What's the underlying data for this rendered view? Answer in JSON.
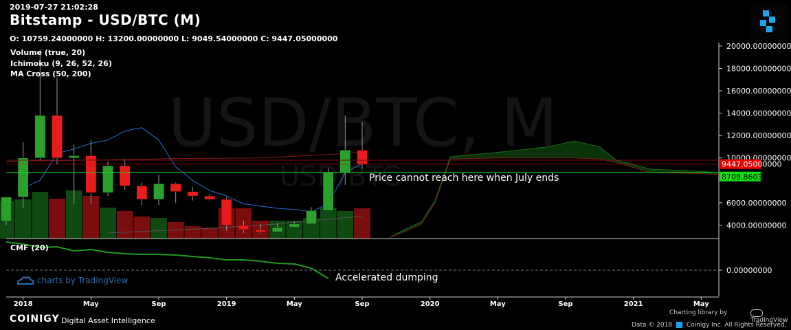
{
  "header": {
    "timestamp": "2019-07-27 21:02:28",
    "title": "Bitstamp - USD/BTC (M)",
    "ohlc": "O: 10759.24000000 H: 13200.00000000 L: 9049.54000000 C: 9447.05000000",
    "watermark_main": "USD/BTC, M",
    "watermark_sub": "USD/BTC"
  },
  "indicators": [
    "Volume (true, 20)",
    "Ichimoku (9, 26, 52, 26)",
    "MA Cross (50, 200)"
  ],
  "cmf_label": "CMF (20)",
  "annotations": {
    "price_note": "Price cannot reach here when July ends",
    "cmf_note": "Accelerated dumping"
  },
  "footer": {
    "brand": "COINIGY",
    "tagline": "Digital Asset Intelligence",
    "charting": "Charting library by",
    "tv": "TradingView",
    "copyright": "Data © 2018",
    "copyright_rest": "Coinigy Inc. All Rights Reserved.",
    "tv_watermark": "charts by TradingView"
  },
  "colors": {
    "up": "#2ca02c",
    "down": "#e81c1c",
    "vol_up": "#0f4a12",
    "vol_down": "#7a0d0d",
    "ma_blue": "#2a6fd6",
    "cmf_line": "#1f9a1f",
    "current_price": "#e50000",
    "level_line": "#10e010",
    "cloud": "#0a3a0a"
  },
  "chart_data": {
    "type": "candlestick",
    "price_axis": {
      "ticks": [
        "20000.00000000",
        "18000.00000000",
        "16000.00000000",
        "14000.00000000",
        "12000.00000000",
        "10000.00000000",
        "6000.00000000",
        "4000.00000000"
      ],
      "tick_values": [
        20000,
        18000,
        16000,
        14000,
        12000,
        10000,
        6000,
        4000
      ],
      "range": [
        2900,
        20300
      ]
    },
    "time_axis": {
      "labels": [
        "2018",
        "May",
        "Sep",
        "2019",
        "May",
        "Sep",
        "2020",
        "May",
        "Sep",
        "2021",
        "May"
      ],
      "label_months": [
        13,
        17,
        21,
        25,
        29,
        33,
        37,
        41,
        45,
        49,
        53
      ],
      "range_months": [
        12.0,
        54.0
      ]
    },
    "current_price": {
      "value": 9447.05,
      "label": "9447.05000000"
    },
    "level_line": {
      "value": 8709.86032066,
      "label": "8709.86032066"
    },
    "red_dotted_level": 9800,
    "candles": [
      {
        "m": 12,
        "o": 4360,
        "h": 6500,
        "l": 4000,
        "c": 6500
      },
      {
        "m": 13,
        "o": 6500,
        "h": 11400,
        "l": 5500,
        "c": 10000
      },
      {
        "m": 14,
        "o": 10000,
        "h": 19700,
        "l": 9800,
        "c": 13800
      },
      {
        "m": 15,
        "o": 13800,
        "h": 17200,
        "l": 9400,
        "c": 10000
      },
      {
        "m": 16,
        "o": 10000,
        "h": 11200,
        "l": 5900,
        "c": 10200
      },
      {
        "m": 17,
        "o": 10200,
        "h": 11600,
        "l": 5900,
        "c": 6900
      },
      {
        "m": 18,
        "o": 6900,
        "h": 9700,
        "l": 6600,
        "c": 9300
      },
      {
        "m": 19,
        "o": 9300,
        "h": 9900,
        "l": 7100,
        "c": 7500
      },
      {
        "m": 20,
        "o": 7500,
        "h": 7800,
        "l": 5800,
        "c": 6300
      },
      {
        "m": 21,
        "o": 6300,
        "h": 8500,
        "l": 5800,
        "c": 7700
      },
      {
        "m": 22,
        "o": 7700,
        "h": 7800,
        "l": 6000,
        "c": 7000
      },
      {
        "m": 23,
        "o": 7000,
        "h": 7400,
        "l": 6200,
        "c": 6600
      },
      {
        "m": 24,
        "o": 6600,
        "h": 6800,
        "l": 6200,
        "c": 6300
      },
      {
        "m": 25,
        "o": 6300,
        "h": 6500,
        "l": 3500,
        "c": 4000
      },
      {
        "m": 26,
        "o": 4000,
        "h": 4400,
        "l": 3300,
        "c": 3600
      },
      {
        "m": 27,
        "o": 3600,
        "h": 4100,
        "l": 3300,
        "c": 3400
      },
      {
        "m": 28,
        "o": 3400,
        "h": 4200,
        "l": 3400,
        "c": 3800
      },
      {
        "m": 29,
        "o": 3800,
        "h": 4300,
        "l": 3800,
        "c": 4100
      },
      {
        "m": 30,
        "o": 4100,
        "h": 5600,
        "l": 4100,
        "c": 5300
      },
      {
        "m": 31,
        "o": 5300,
        "h": 9100,
        "l": 5300,
        "c": 8700
      },
      {
        "m": 32,
        "o": 8700,
        "h": 13800,
        "l": 7600,
        "c": 10700
      },
      {
        "m": 33,
        "o": 10700,
        "h": 13200,
        "l": 9050,
        "c": 9450
      }
    ],
    "volume": [
      {
        "m": 12,
        "v": 0.55,
        "up": true
      },
      {
        "m": 13,
        "v": 0.57,
        "up": true
      },
      {
        "m": 14,
        "v": 0.68,
        "up": true
      },
      {
        "m": 15,
        "v": 0.58,
        "up": false
      },
      {
        "m": 16,
        "v": 0.7,
        "up": true
      },
      {
        "m": 17,
        "v": 0.62,
        "up": false
      },
      {
        "m": 18,
        "v": 0.45,
        "up": true
      },
      {
        "m": 19,
        "v": 0.4,
        "up": false
      },
      {
        "m": 20,
        "v": 0.32,
        "up": false
      },
      {
        "m": 21,
        "v": 0.3,
        "up": true
      },
      {
        "m": 22,
        "v": 0.24,
        "up": false
      },
      {
        "m": 23,
        "v": 0.18,
        "up": false
      },
      {
        "m": 24,
        "v": 0.16,
        "up": false
      },
      {
        "m": 25,
        "v": 0.44,
        "up": false
      },
      {
        "m": 26,
        "v": 0.44,
        "up": false
      },
      {
        "m": 27,
        "v": 0.26,
        "up": false
      },
      {
        "m": 28,
        "v": 0.26,
        "up": true
      },
      {
        "m": 29,
        "v": 0.26,
        "up": true
      },
      {
        "m": 30,
        "v": 0.3,
        "up": true
      },
      {
        "m": 31,
        "v": 0.45,
        "up": true
      },
      {
        "m": 32,
        "v": 0.4,
        "up": true
      },
      {
        "m": 33,
        "v": 0.44,
        "up": false
      }
    ],
    "ma_blue": [
      {
        "m": 13,
        "p": 7300
      },
      {
        "m": 14,
        "p": 8000
      },
      {
        "m": 15,
        "p": 10400
      },
      {
        "m": 16,
        "p": 10800
      },
      {
        "m": 17,
        "p": 11300
      },
      {
        "m": 18,
        "p": 11600
      },
      {
        "m": 19,
        "p": 12400
      },
      {
        "m": 19.6,
        "p": 12600
      },
      {
        "m": 20,
        "p": 12700
      },
      {
        "m": 21,
        "p": 11600
      },
      {
        "m": 22,
        "p": 9200
      },
      {
        "m": 23,
        "p": 8000
      },
      {
        "m": 24,
        "p": 7100
      },
      {
        "m": 25,
        "p": 6600
      },
      {
        "m": 26,
        "p": 5900
      },
      {
        "m": 27,
        "p": 5700
      },
      {
        "m": 28,
        "p": 5500
      },
      {
        "m": 29,
        "p": 5400
      },
      {
        "m": 30,
        "p": 5200
      },
      {
        "m": 31,
        "p": 5900
      },
      {
        "m": 32,
        "p": 8700
      },
      {
        "m": 33,
        "p": 9500
      }
    ],
    "red_ma": [
      {
        "m": 12,
        "p": 9700
      },
      {
        "m": 17,
        "p": 9800
      },
      {
        "m": 22,
        "p": 9950
      },
      {
        "m": 27,
        "p": 10000
      },
      {
        "m": 31,
        "p": 10300
      },
      {
        "m": 33,
        "p": 10500
      }
    ],
    "faint_ma": [
      {
        "m": 18,
        "p": 3300
      },
      {
        "m": 24,
        "p": 3700
      },
      {
        "m": 28,
        "p": 4100
      },
      {
        "m": 33,
        "p": 4800
      }
    ],
    "cloud_upper": [
      {
        "m": 34.6,
        "p": 2900
      },
      {
        "m": 35.5,
        "p": 3600
      },
      {
        "m": 36.5,
        "p": 4300
      },
      {
        "m": 37.3,
        "p": 6200
      },
      {
        "m": 38.2,
        "p": 10100
      },
      {
        "m": 41,
        "p": 10500
      },
      {
        "m": 44,
        "p": 11000
      },
      {
        "m": 45.5,
        "p": 11500
      },
      {
        "m": 47,
        "p": 11000
      },
      {
        "m": 48,
        "p": 9800
      },
      {
        "m": 50,
        "p": 9000
      },
      {
        "m": 53,
        "p": 8800
      },
      {
        "m": 54,
        "p": 8700
      }
    ],
    "cloud_lower": [
      {
        "m": 34.6,
        "p": 2900
      },
      {
        "m": 35.5,
        "p": 3400
      },
      {
        "m": 36.5,
        "p": 4100
      },
      {
        "m": 37.3,
        "p": 6000
      },
      {
        "m": 38.2,
        "p": 9900
      },
      {
        "m": 41,
        "p": 10000
      },
      {
        "m": 44,
        "p": 10000
      },
      {
        "m": 45.5,
        "p": 10000
      },
      {
        "m": 47,
        "p": 9900
      },
      {
        "m": 48,
        "p": 9600
      },
      {
        "m": 50,
        "p": 8700
      },
      {
        "m": 53,
        "p": 8600
      },
      {
        "m": 54,
        "p": 8500
      }
    ],
    "cmf": {
      "zero_label": "0.00000000",
      "range": [
        -0.35,
        0.45
      ],
      "points": [
        {
          "m": 12,
          "v": 0.41
        },
        {
          "m": 13,
          "v": 0.38
        },
        {
          "m": 14,
          "v": 0.33
        },
        {
          "m": 15,
          "v": 0.34
        },
        {
          "m": 16,
          "v": 0.28
        },
        {
          "m": 17,
          "v": 0.3
        },
        {
          "m": 18,
          "v": 0.26
        },
        {
          "m": 19,
          "v": 0.24
        },
        {
          "m": 20,
          "v": 0.23
        },
        {
          "m": 21,
          "v": 0.23
        },
        {
          "m": 22,
          "v": 0.22
        },
        {
          "m": 23,
          "v": 0.2
        },
        {
          "m": 24,
          "v": 0.18
        },
        {
          "m": 25,
          "v": 0.15
        },
        {
          "m": 26,
          "v": 0.15
        },
        {
          "m": 27,
          "v": 0.13
        },
        {
          "m": 28,
          "v": 0.1
        },
        {
          "m": 29,
          "v": 0.09
        },
        {
          "m": 30,
          "v": 0.03
        },
        {
          "m": 31,
          "v": -0.12
        }
      ]
    }
  }
}
